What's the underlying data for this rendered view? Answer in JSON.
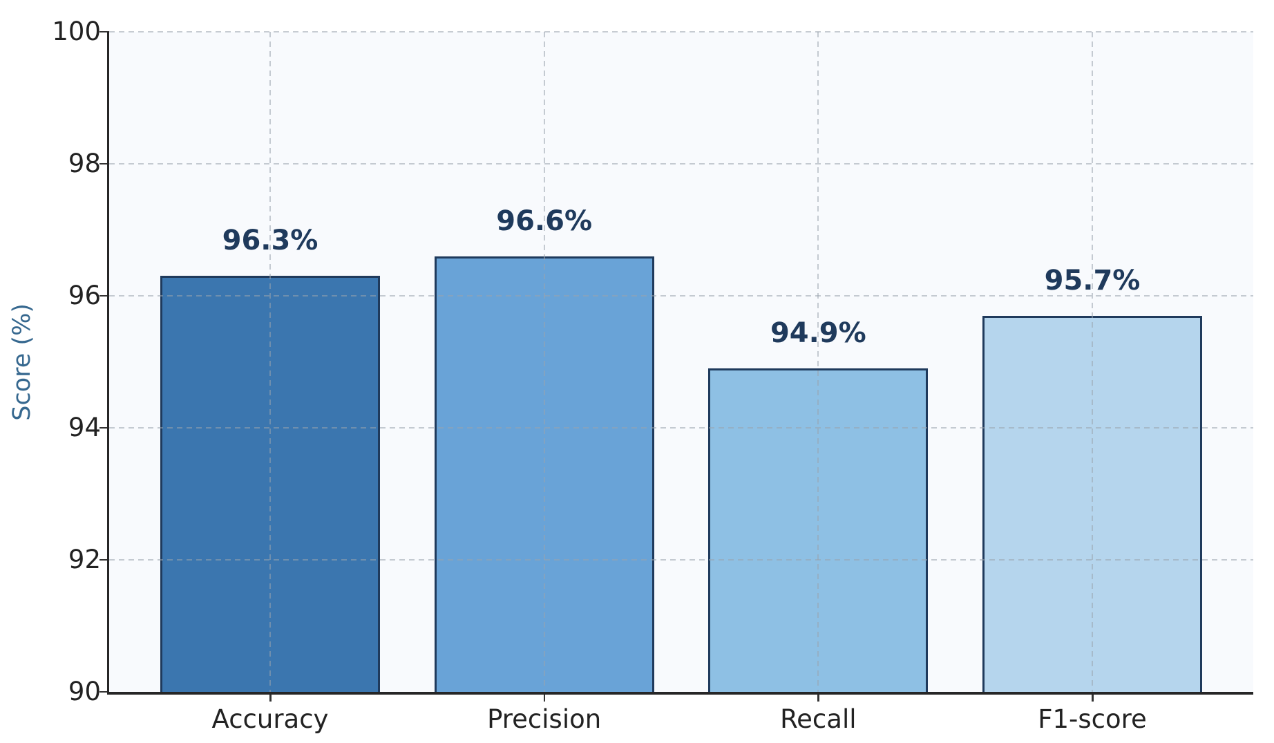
{
  "chart_data": {
    "type": "bar",
    "title": "",
    "categories": [
      "Accuracy",
      "Precision",
      "Recall",
      "F1-score"
    ],
    "values": [
      96.3,
      96.6,
      94.9,
      95.7
    ],
    "value_labels": [
      "96.3%",
      "96.6%",
      "94.9%",
      "95.7%"
    ],
    "xlabel": "",
    "ylabel": "Score (%)",
    "ylim": [
      90,
      100
    ],
    "yticks": [
      90,
      92,
      94,
      96,
      98,
      100
    ],
    "grid": "dashed-both-axes-over-bars",
    "legend": "none",
    "colors": {
      "bars": [
        "#3b76af",
        "#69a3d7",
        "#8ec0e4",
        "#b5d5ed"
      ],
      "bar_edge": "#1f3a5c",
      "value_label": "#1f3a5c",
      "tick_label": "#222222",
      "axis_spine": "#262626",
      "grid": "#99a3ad",
      "plot_background": "#f8fafd",
      "figure_background": "#ffffff",
      "ylabel": "#36688f"
    }
  }
}
